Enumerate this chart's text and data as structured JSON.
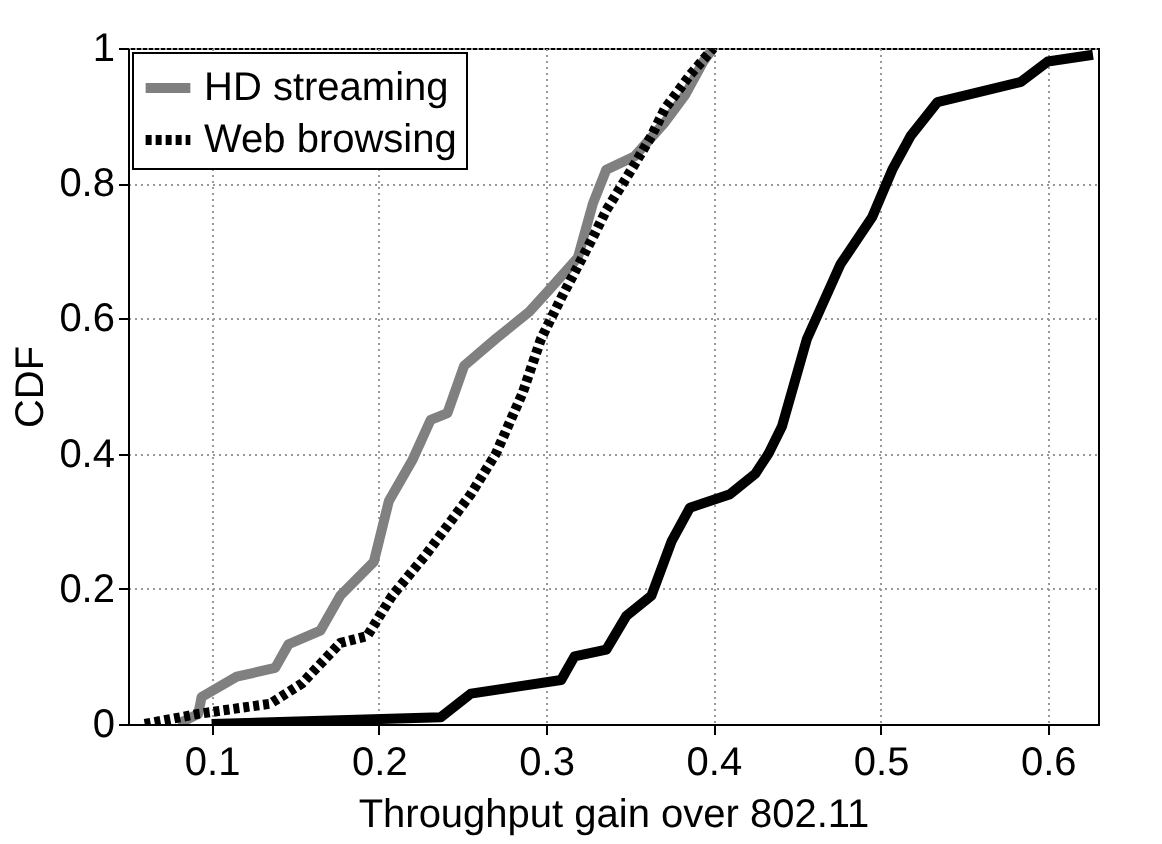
{
  "chart_data": {
    "type": "line",
    "xlabel": "Throughput gain over 802.11",
    "ylabel": "CDF",
    "xlim": [
      0.05,
      0.63
    ],
    "xticks": [
      0.1,
      0.2,
      0.3,
      0.4,
      0.5,
      0.6
    ],
    "ylim": [
      0,
      1
    ],
    "yticks": [
      0,
      0.2,
      0.4,
      0.6,
      0.8,
      1
    ],
    "grid": true,
    "legend": "top left",
    "series": [
      {
        "name": "HD streaming",
        "color": "#808080",
        "line_style": "solid",
        "x": [
          0.08,
          0.092,
          0.094,
          0.115,
          0.138,
          0.146,
          0.165,
          0.177,
          0.197,
          0.206,
          0.22,
          0.231,
          0.241,
          0.251,
          0.27,
          0.29,
          0.301,
          0.319,
          0.328,
          0.336,
          0.353,
          0.371,
          0.383,
          0.394,
          0.4
        ],
        "values": [
          0,
          0.015,
          0.04,
          0.07,
          0.083,
          0.118,
          0.138,
          0.19,
          0.24,
          0.33,
          0.39,
          0.45,
          0.46,
          0.53,
          0.57,
          0.61,
          0.64,
          0.69,
          0.77,
          0.82,
          0.84,
          0.89,
          0.93,
          0.98,
          1.0
        ]
      },
      {
        "color": "#000000",
        "line_style": "solid",
        "x": [
          0.1,
          0.237,
          0.255,
          0.309,
          0.317,
          0.336,
          0.348,
          0.363,
          0.375,
          0.386,
          0.41,
          0.425,
          0.433,
          0.441,
          0.456,
          0.476,
          0.495,
          0.507,
          0.518,
          0.534,
          0.584,
          0.6,
          0.627
        ],
        "values": [
          0,
          0.01,
          0.045,
          0.065,
          0.1,
          0.11,
          0.16,
          0.19,
          0.27,
          0.32,
          0.34,
          0.37,
          0.4,
          0.44,
          0.57,
          0.68,
          0.75,
          0.82,
          0.87,
          0.92,
          0.95,
          0.98,
          0.99
        ]
      },
      {
        "name": "Web browsing",
        "color": "#000000",
        "line_style": "dotted",
        "x": [
          0.06,
          0.092,
          0.135,
          0.154,
          0.177,
          0.193,
          0.208,
          0.228,
          0.243,
          0.255,
          0.27,
          0.286,
          0.297,
          0.309,
          0.328,
          0.336,
          0.351,
          0.363,
          0.371,
          0.386,
          0.4
        ],
        "values": [
          0,
          0.015,
          0.03,
          0.06,
          0.12,
          0.13,
          0.19,
          0.25,
          0.3,
          0.34,
          0.4,
          0.49,
          0.57,
          0.63,
          0.72,
          0.76,
          0.82,
          0.87,
          0.91,
          0.96,
          1.0
        ]
      }
    ]
  }
}
